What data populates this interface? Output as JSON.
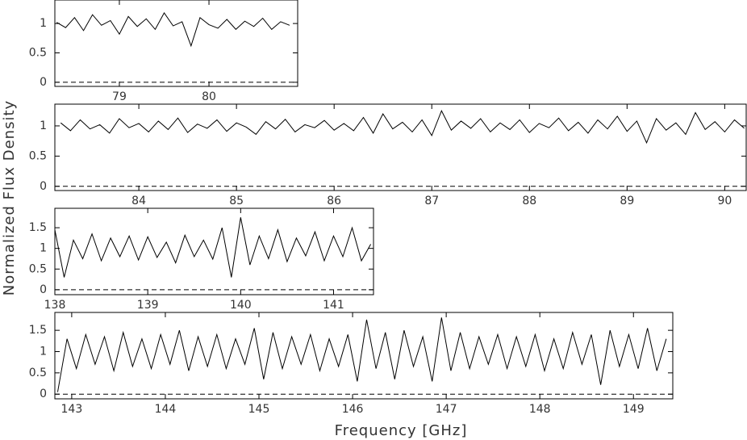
{
  "xlabel": "Frequency [GHz]",
  "ylabel": "Normalized Flux Density",
  "chart_data": [
    {
      "type": "line",
      "xlim": [
        78.28,
        80.99
      ],
      "ylim": [
        -0.07,
        1.4
      ],
      "xticks": [
        79,
        80
      ],
      "yticks": [
        0,
        0.5,
        1
      ],
      "hline": 0,
      "x": [
        78.3,
        78.4,
        78.5,
        78.6,
        78.7,
        78.8,
        78.9,
        79.0,
        79.1,
        79.2,
        79.3,
        79.4,
        79.5,
        79.6,
        79.7,
        79.8,
        79.9,
        80.0,
        80.1,
        80.2,
        80.3,
        80.4,
        80.5,
        80.6,
        80.7,
        80.8,
        80.9
      ],
      "series": [
        {
          "color": "#000000",
          "values": [
            1.02,
            0.93,
            1.1,
            0.88,
            1.15,
            0.97,
            1.05,
            0.82,
            1.12,
            0.95,
            1.08,
            0.9,
            1.18,
            0.96,
            1.03,
            0.62,
            1.1,
            0.98,
            0.92,
            1.07,
            0.9,
            1.04,
            0.95,
            1.09,
            0.9,
            1.03,
            0.97
          ]
        }
      ]
    },
    {
      "type": "line",
      "xlim": [
        83.14,
        90.22
      ],
      "ylim": [
        -0.07,
        1.36
      ],
      "xticks": [
        84,
        85,
        86,
        87,
        88,
        89,
        90
      ],
      "yticks": [
        0,
        0.5,
        1
      ],
      "hline": 0,
      "x": [
        83.2,
        83.3,
        83.4,
        83.5,
        83.6,
        83.7,
        83.8,
        83.9,
        84.0,
        84.1,
        84.2,
        84.3,
        84.4,
        84.5,
        84.6,
        84.7,
        84.8,
        84.9,
        85.0,
        85.1,
        85.2,
        85.3,
        85.4,
        85.5,
        85.6,
        85.7,
        85.8,
        85.9,
        86.0,
        86.1,
        86.2,
        86.3,
        86.4,
        86.5,
        86.6,
        86.7,
        86.8,
        86.9,
        87.0,
        87.1,
        87.2,
        87.3,
        87.4,
        87.5,
        87.6,
        87.7,
        87.8,
        87.9,
        88.0,
        88.1,
        88.2,
        88.3,
        88.4,
        88.5,
        88.6,
        88.7,
        88.8,
        88.9,
        89.0,
        89.1,
        89.2,
        89.3,
        89.4,
        89.5,
        89.6,
        89.7,
        89.8,
        89.9,
        90.0,
        90.1,
        90.2
      ],
      "series": [
        {
          "color": "#000000",
          "values": [
            1.05,
            0.92,
            1.1,
            0.95,
            1.02,
            0.88,
            1.12,
            0.97,
            1.04,
            0.9,
            1.08,
            0.94,
            1.13,
            0.89,
            1.03,
            0.96,
            1.1,
            0.91,
            1.05,
            0.98,
            0.86,
            1.07,
            0.95,
            1.11,
            0.9,
            1.02,
            0.97,
            1.09,
            0.93,
            1.04,
            0.92,
            1.14,
            0.88,
            1.2,
            0.95,
            1.06,
            0.9,
            1.1,
            0.84,
            1.25,
            0.93,
            1.08,
            0.96,
            1.12,
            0.9,
            1.05,
            0.94,
            1.1,
            0.89,
            1.04,
            0.97,
            1.13,
            0.92,
            1.06,
            0.88,
            1.1,
            0.95,
            1.16,
            0.91,
            1.08,
            0.72,
            1.12,
            0.93,
            1.05,
            0.86,
            1.22,
            0.94,
            1.07,
            0.9,
            1.1,
            0.96
          ]
        }
      ]
    },
    {
      "type": "line",
      "xlim": [
        138,
        141.43
      ],
      "ylim": [
        -0.12,
        1.97
      ],
      "xticks": [
        138,
        139,
        140,
        141
      ],
      "yticks": [
        0,
        0.5,
        1,
        1.5
      ],
      "hline": 0,
      "x": [
        138.0,
        138.1,
        138.2,
        138.3,
        138.4,
        138.5,
        138.6,
        138.7,
        138.8,
        138.9,
        139.0,
        139.1,
        139.2,
        139.3,
        139.4,
        139.5,
        139.6,
        139.7,
        139.8,
        139.9,
        140.0,
        140.1,
        140.2,
        140.3,
        140.4,
        140.5,
        140.6,
        140.7,
        140.8,
        140.9,
        141.0,
        141.1,
        141.2,
        141.3,
        141.4
      ],
      "series": [
        {
          "color": "#000000",
          "values": [
            1.45,
            0.3,
            1.2,
            0.75,
            1.35,
            0.7,
            1.25,
            0.8,
            1.3,
            0.72,
            1.28,
            0.78,
            1.15,
            0.65,
            1.32,
            0.8,
            1.2,
            0.74,
            1.5,
            0.3,
            1.75,
            0.6,
            1.3,
            0.75,
            1.45,
            0.68,
            1.25,
            0.82,
            1.4,
            0.7,
            1.3,
            0.8,
            1.5,
            0.7,
            1.1
          ]
        }
      ]
    },
    {
      "type": "line",
      "xlim": [
        142.82,
        149.42
      ],
      "ylim": [
        -0.11,
        1.92
      ],
      "xticks": [
        143,
        144,
        145,
        146,
        147,
        148,
        149
      ],
      "yticks": [
        0,
        0.5,
        1,
        1.5
      ],
      "hline": 0,
      "x": [
        142.85,
        142.95,
        143.05,
        143.15,
        143.25,
        143.35,
        143.45,
        143.55,
        143.65,
        143.75,
        143.85,
        143.95,
        144.05,
        144.15,
        144.25,
        144.35,
        144.45,
        144.55,
        144.65,
        144.75,
        144.85,
        144.95,
        145.05,
        145.15,
        145.25,
        145.35,
        145.45,
        145.55,
        145.65,
        145.75,
        145.85,
        145.95,
        146.05,
        146.15,
        146.25,
        146.35,
        146.45,
        146.55,
        146.65,
        146.75,
        146.85,
        146.95,
        147.05,
        147.15,
        147.25,
        147.35,
        147.45,
        147.55,
        147.65,
        147.75,
        147.85,
        147.95,
        148.05,
        148.15,
        148.25,
        148.35,
        148.45,
        148.55,
        148.65,
        148.75,
        148.85,
        148.95,
        149.05,
        149.15,
        149.25,
        149.35
      ],
      "series": [
        {
          "color": "#000000",
          "values": [
            0.05,
            1.3,
            0.6,
            1.4,
            0.7,
            1.35,
            0.55,
            1.45,
            0.65,
            1.3,
            0.6,
            1.4,
            0.7,
            1.5,
            0.55,
            1.35,
            0.65,
            1.4,
            0.6,
            1.3,
            0.7,
            1.55,
            0.35,
            1.45,
            0.6,
            1.35,
            0.7,
            1.4,
            0.55,
            1.3,
            0.65,
            1.4,
            0.3,
            1.75,
            0.6,
            1.45,
            0.35,
            1.5,
            0.65,
            1.35,
            0.3,
            1.8,
            0.55,
            1.45,
            0.6,
            1.35,
            0.7,
            1.4,
            0.6,
            1.35,
            0.65,
            1.4,
            0.55,
            1.3,
            0.6,
            1.45,
            0.7,
            1.4,
            0.22,
            1.5,
            0.65,
            1.4,
            0.6,
            1.55,
            0.55,
            1.3
          ]
        }
      ]
    }
  ]
}
